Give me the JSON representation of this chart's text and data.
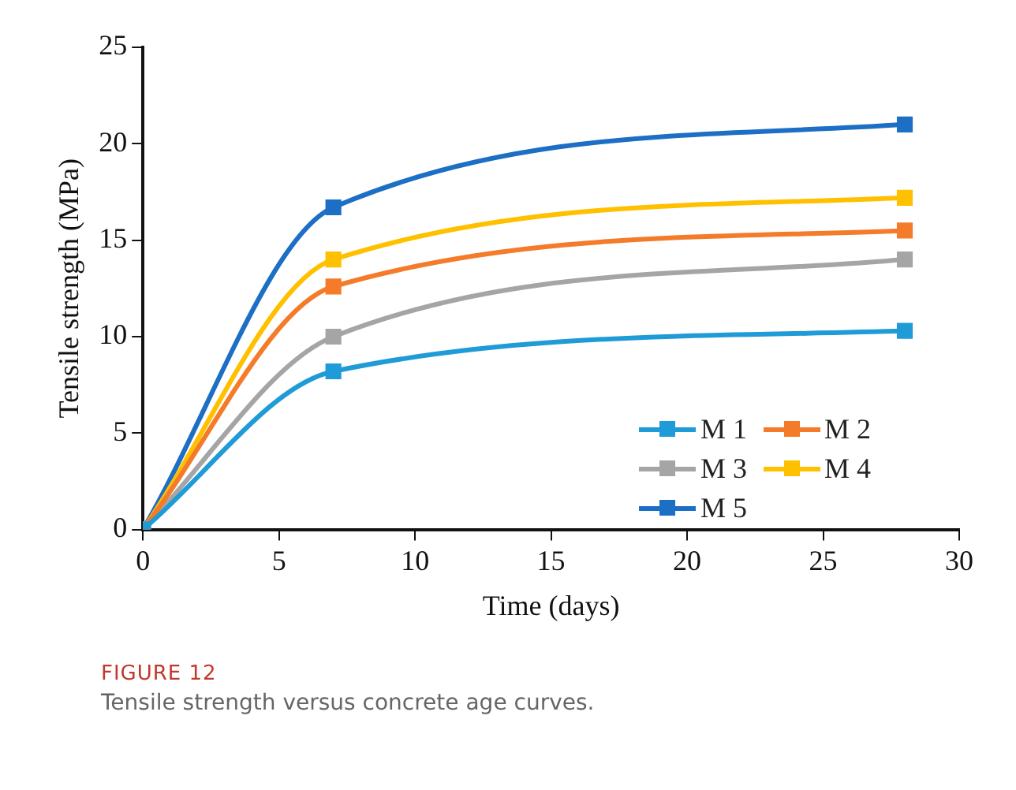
{
  "chart_data": {
    "type": "line",
    "xlabel": "Time (days)",
    "ylabel": "Tensile strength (MPa)",
    "annotations": [
      "FIGURE 12",
      "Tensile strength versus concrete age curves."
    ],
    "x": [
      0,
      7,
      28
    ],
    "series": [
      {
        "name": "M 1",
        "color": "#1f9bd7",
        "values": [
          0,
          8.2,
          10.3
        ]
      },
      {
        "name": "M 2",
        "color": "#f47b2a",
        "values": [
          0,
          12.6,
          15.5
        ]
      },
      {
        "name": "M 3",
        "color": "#a5a5a5",
        "values": [
          0,
          10.0,
          14.0
        ]
      },
      {
        "name": "M 4",
        "color": "#ffc000",
        "values": [
          0,
          14.0,
          17.2
        ]
      },
      {
        "name": "M 5",
        "color": "#1c6fc4",
        "values": [
          0,
          16.7,
          21.0
        ]
      }
    ],
    "xlim": [
      0,
      30
    ],
    "xticks": [
      0,
      5,
      10,
      15,
      20,
      25,
      30
    ],
    "ylim": [
      0,
      25
    ],
    "yticks": [
      0,
      5,
      10,
      15,
      20,
      25
    ],
    "grid": false,
    "legend": "bottom right",
    "marker": "square",
    "line_style": "solid"
  }
}
